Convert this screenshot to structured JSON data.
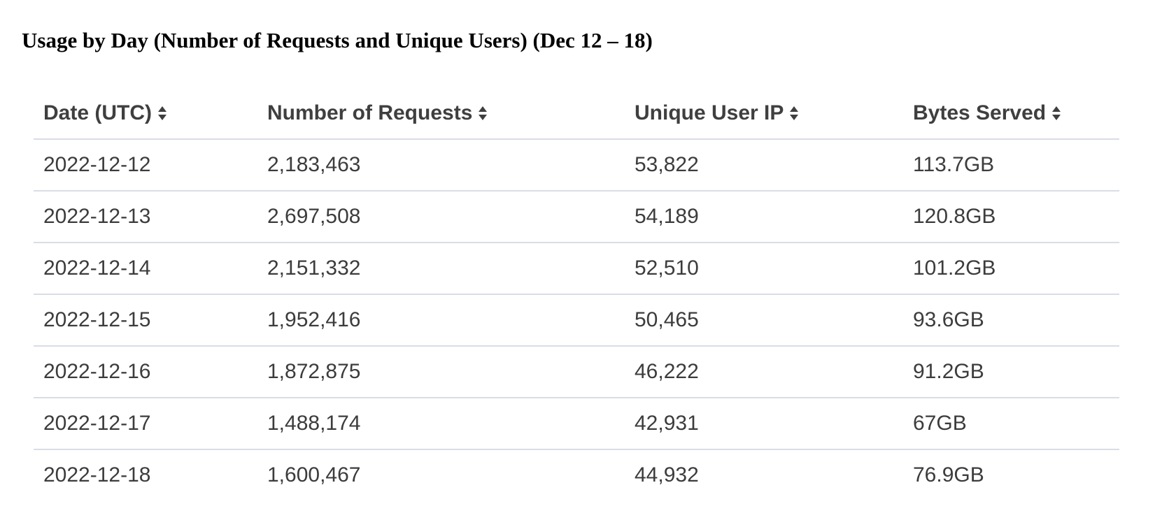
{
  "title": "Usage by Day (Number of Requests and Unique Users) (Dec 12 – 18)",
  "table": {
    "columns": [
      {
        "label": "Date (UTC)",
        "icon": "sort-icon"
      },
      {
        "label": "Number of Requests",
        "icon": "sort-icon"
      },
      {
        "label": "Unique User IP",
        "icon": "sort-icon"
      },
      {
        "label": "Bytes Served",
        "icon": "sort-icon"
      }
    ],
    "rows": [
      [
        "2022-12-12",
        "2,183,463",
        "53,822",
        "113.7GB"
      ],
      [
        "2022-12-13",
        "2,697,508",
        "54,189",
        "120.8GB"
      ],
      [
        "2022-12-14",
        "2,151,332",
        "52,510",
        "101.2GB"
      ],
      [
        "2022-12-15",
        "1,952,416",
        "50,465",
        "93.6GB"
      ],
      [
        "2022-12-16",
        "1,872,875",
        "46,222",
        "91.2GB"
      ],
      [
        "2022-12-17",
        "1,488,174",
        "42,931",
        "67GB"
      ],
      [
        "2022-12-18",
        "1,600,467",
        "44,932",
        "76.9GB"
      ]
    ]
  },
  "colors": {
    "text": "#3c3c3c",
    "divider": "#d9dde4",
    "title": "#000000"
  }
}
